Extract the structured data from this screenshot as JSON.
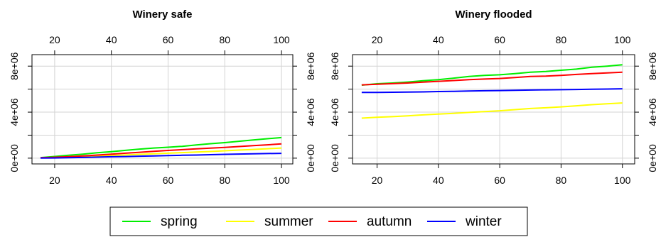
{
  "chart_data": [
    {
      "type": "line",
      "title": "Winery safe",
      "xlim": [
        12,
        104
      ],
      "ylim": [
        -500000,
        9000000
      ],
      "x_ticks": [
        20,
        40,
        60,
        80,
        100
      ],
      "x_tick_labels": [
        "20",
        "40",
        "60",
        "80",
        "100"
      ],
      "y_ticks": [
        0,
        2000000,
        4000000,
        6000000,
        8000000
      ],
      "y_tick_labels": [
        "0e+00",
        "4e+06",
        "8e+06"
      ],
      "y_tick_label_values": [
        0,
        4000000,
        8000000
      ],
      "grid": true,
      "x": [
        15,
        20,
        25,
        30,
        35,
        40,
        45,
        50,
        55,
        60,
        65,
        70,
        75,
        80,
        85,
        90,
        95,
        100
      ],
      "series": [
        {
          "name": "spring",
          "color": "#00ee00",
          "values": [
            50000,
            150000,
            250000,
            350000,
            470000,
            570000,
            680000,
            790000,
            880000,
            950000,
            1030000,
            1150000,
            1260000,
            1350000,
            1470000,
            1580000,
            1690000,
            1790000
          ]
        },
        {
          "name": "summer",
          "color": "#ffff00",
          "values": [
            30000,
            60000,
            100000,
            140000,
            180000,
            230000,
            280000,
            330000,
            380000,
            430000,
            480000,
            530000,
            580000,
            640000,
            700000,
            760000,
            820000,
            880000
          ]
        },
        {
          "name": "autumn",
          "color": "#ff0000",
          "values": [
            40000,
            80000,
            130000,
            190000,
            270000,
            350000,
            430000,
            510000,
            590000,
            670000,
            740000,
            810000,
            870000,
            930000,
            1010000,
            1090000,
            1160000,
            1240000
          ]
        },
        {
          "name": "winter",
          "color": "#0000ff",
          "values": [
            10000,
            20000,
            40000,
            60000,
            90000,
            120000,
            140000,
            170000,
            200000,
            220000,
            250000,
            270000,
            300000,
            330000,
            360000,
            380000,
            400000,
            420000
          ]
        }
      ]
    },
    {
      "type": "line",
      "title": "Winery flooded",
      "xlim": [
        12,
        104
      ],
      "ylim": [
        -500000,
        9000000
      ],
      "x_ticks": [
        20,
        40,
        60,
        80,
        100
      ],
      "x_tick_labels": [
        "20",
        "40",
        "60",
        "80",
        "100"
      ],
      "y_ticks": [
        0,
        2000000,
        4000000,
        6000000,
        8000000
      ],
      "y_tick_labels": [
        "0e+00",
        "4e+06",
        "8e+06"
      ],
      "y_tick_label_values": [
        0,
        4000000,
        8000000
      ],
      "grid": true,
      "x": [
        15,
        20,
        25,
        30,
        35,
        40,
        45,
        50,
        55,
        60,
        65,
        70,
        75,
        80,
        85,
        90,
        95,
        100
      ],
      "series": [
        {
          "name": "spring",
          "color": "#00ee00",
          "values": [
            6350000,
            6470000,
            6530000,
            6620000,
            6730000,
            6820000,
            6960000,
            7100000,
            7190000,
            7250000,
            7350000,
            7470000,
            7540000,
            7640000,
            7740000,
            7910000,
            8000000,
            8120000
          ]
        },
        {
          "name": "summer",
          "color": "#ffff00",
          "values": [
            3480000,
            3560000,
            3610000,
            3680000,
            3760000,
            3830000,
            3900000,
            3980000,
            4050000,
            4120000,
            4220000,
            4320000,
            4380000,
            4460000,
            4550000,
            4650000,
            4730000,
            4800000
          ]
        },
        {
          "name": "autumn",
          "color": "#ff0000",
          "values": [
            6370000,
            6430000,
            6480000,
            6530000,
            6610000,
            6680000,
            6750000,
            6820000,
            6880000,
            6930000,
            7010000,
            7100000,
            7130000,
            7190000,
            7280000,
            7350000,
            7410000,
            7470000
          ]
        },
        {
          "name": "winter",
          "color": "#0000ff",
          "values": [
            5710000,
            5720000,
            5730000,
            5740000,
            5760000,
            5790000,
            5810000,
            5840000,
            5860000,
            5880000,
            5900000,
            5920000,
            5940000,
            5950000,
            5970000,
            5990000,
            6010000,
            6030000
          ]
        }
      ]
    }
  ],
  "legend": {
    "position": "bottom",
    "entries": [
      {
        "label": "spring",
        "color": "#00ee00"
      },
      {
        "label": "summer",
        "color": "#ffff00"
      },
      {
        "label": "autumn",
        "color": "#ff0000"
      },
      {
        "label": "winter",
        "color": "#0000ff"
      }
    ]
  }
}
